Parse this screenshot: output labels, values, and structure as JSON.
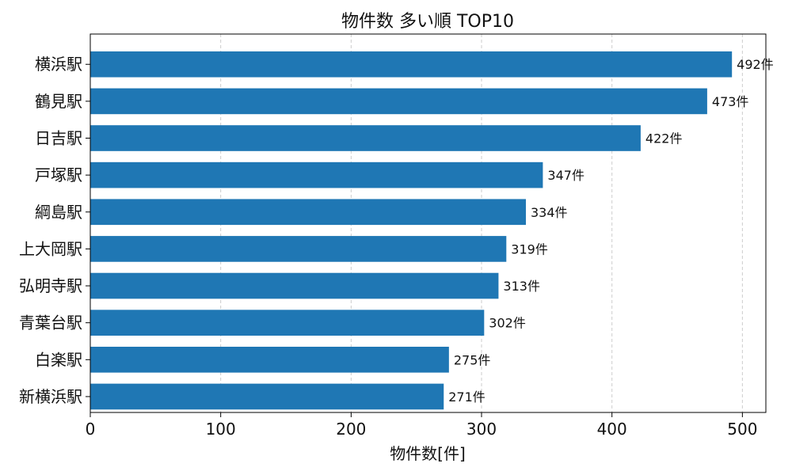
{
  "chart_data": {
    "type": "bar",
    "orientation": "horizontal",
    "title": "物件数 多い順 TOP10",
    "xlabel": "物件数[件]",
    "ylabel": "",
    "categories": [
      "横浜駅",
      "鶴見駅",
      "日吉駅",
      "戸塚駅",
      "綱島駅",
      "上大岡駅",
      "弘明寺駅",
      "青葉台駅",
      "白楽駅",
      "新横浜駅"
    ],
    "values": [
      492,
      473,
      422,
      347,
      334,
      319,
      313,
      302,
      275,
      271
    ],
    "value_labels": [
      "492件",
      "473件",
      "422件",
      "347件",
      "334件",
      "319件",
      "313件",
      "302件",
      "275件",
      "271件"
    ],
    "xlim": [
      0,
      518
    ],
    "xticks": [
      0,
      100,
      200,
      300,
      400,
      500
    ],
    "xtick_labels": [
      "0",
      "100",
      "200",
      "300",
      "400",
      "500"
    ],
    "grid": {
      "x": true,
      "y": false,
      "style": "dashed"
    },
    "colors": {
      "bar": "#1f77b4",
      "grid": "#cccccc",
      "axis": "#000000",
      "text": "#111111"
    }
  }
}
